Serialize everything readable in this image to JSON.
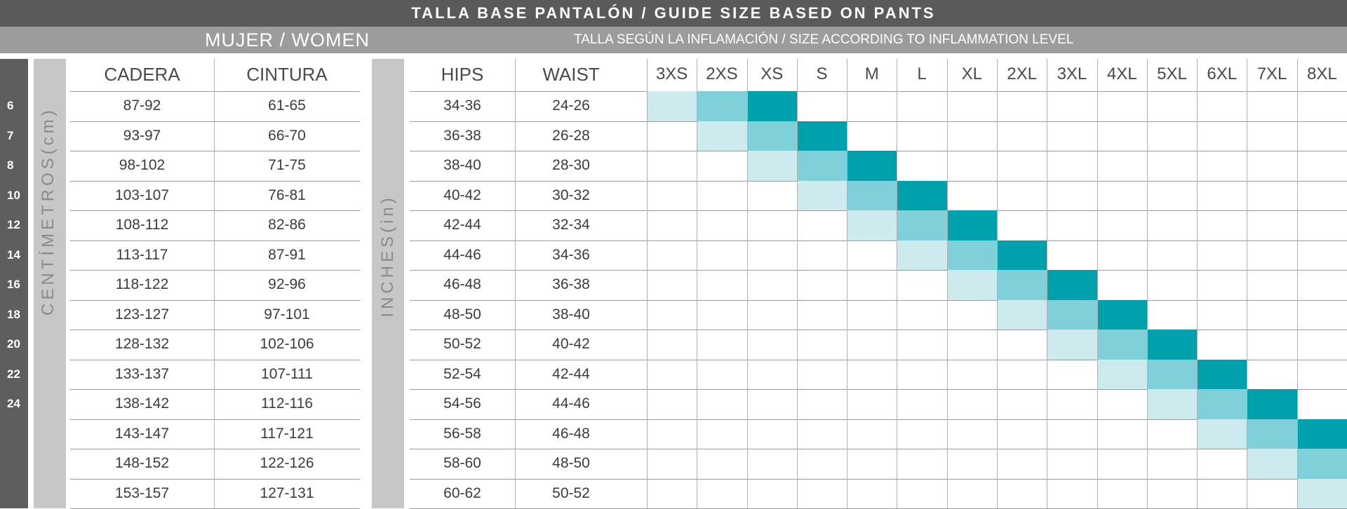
{
  "title": "TALLA BASE PANTALÓN / GUIDE SIZE BASED ON PANTS",
  "subtitle_left": "MUJER / WOMEN",
  "subtitle_right": "TALLA SEGÚN LA INFLAMACIÓN / SIZE ACCORDING TO INFLAMMATION LEVEL",
  "cm_label": "CENTÍMETROS(cm)",
  "in_label": "INCHES(in)",
  "headers": {
    "cadera": "CADERA",
    "cintura": "CINTURA",
    "hips": "HIPS",
    "waist": "WAIST"
  },
  "sizes": [
    "3XS",
    "2XS",
    "XS",
    "S",
    "M",
    "L",
    "XL",
    "2XL",
    "3XL",
    "4XL",
    "5XL",
    "6XL",
    "7XL",
    "8XL"
  ],
  "eu_sizes": [
    "6",
    "7",
    "8",
    "10",
    "12",
    "14",
    "16",
    "18",
    "20",
    "22",
    "24"
  ],
  "rows": [
    {
      "cadera": "87-92",
      "cintura": "61-65",
      "hips": "34-36",
      "waist": "24-26"
    },
    {
      "cadera": "93-97",
      "cintura": "66-70",
      "hips": "36-38",
      "waist": "26-28"
    },
    {
      "cadera": "98-102",
      "cintura": "71-75",
      "hips": "38-40",
      "waist": "28-30"
    },
    {
      "cadera": "103-107",
      "cintura": "76-81",
      "hips": "40-42",
      "waist": "30-32"
    },
    {
      "cadera": "108-112",
      "cintura": "82-86",
      "hips": "42-44",
      "waist": "32-34"
    },
    {
      "cadera": "113-117",
      "cintura": "87-91",
      "hips": "44-46",
      "waist": "34-36"
    },
    {
      "cadera": "118-122",
      "cintura": "92-96",
      "hips": "46-48",
      "waist": "36-38"
    },
    {
      "cadera": "123-127",
      "cintura": "97-101",
      "hips": "48-50",
      "waist": "38-40"
    },
    {
      "cadera": "128-132",
      "cintura": "102-106",
      "hips": "50-52",
      "waist": "40-42"
    },
    {
      "cadera": "133-137",
      "cintura": "107-111",
      "hips": "52-54",
      "waist": "42-44"
    },
    {
      "cadera": "138-142",
      "cintura": "112-116",
      "hips": "54-56",
      "waist": "44-46"
    },
    {
      "cadera": "143-147",
      "cintura": "117-121",
      "hips": "56-58",
      "waist": "46-48"
    },
    {
      "cadera": "148-152",
      "cintura": "122-126",
      "hips": "58-60",
      "waist": "48-50"
    },
    {
      "cadera": "153-157",
      "cintura": "127-131",
      "hips": "60-62",
      "waist": "50-52"
    }
  ],
  "colors": {
    "level_light": "#cdebee",
    "level_medium": "#7fd0d8",
    "level_dark": "#00a0ad"
  }
}
